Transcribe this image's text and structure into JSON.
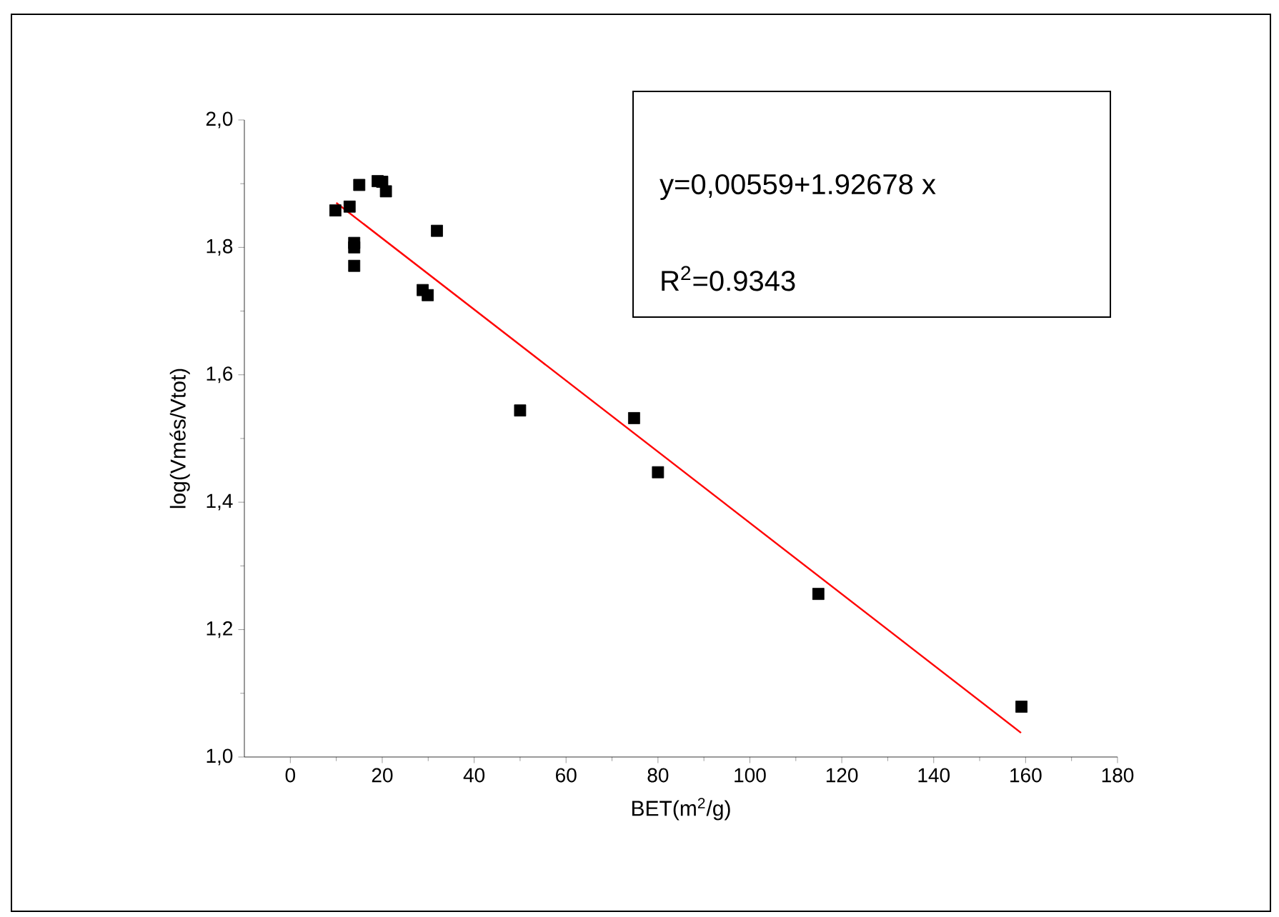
{
  "chart_data": {
    "type": "scatter",
    "xlabel": "BET(m$^{2}$/g)",
    "ylabel": "log(Vmés/Vtot)",
    "annotations": [
      "y=0,00559+1.92678 x",
      "R$^{2}$=0.9343"
    ],
    "xlim": [
      -10,
      180
    ],
    "ylim": [
      1.0,
      2.0
    ],
    "xticks": [
      0,
      20,
      40,
      60,
      80,
      100,
      120,
      140,
      160,
      180
    ],
    "yticks": [
      {
        "value": 1.0,
        "label": "1,0"
      },
      {
        "value": 1.2,
        "label": "1,2"
      },
      {
        "value": 1.4,
        "label": "1,4"
      },
      {
        "value": 1.6,
        "label": "1,6"
      },
      {
        "value": 1.8,
        "label": "1,8"
      },
      {
        "value": 2.0,
        "label": "2,0"
      }
    ],
    "grid": false,
    "series": [
      {
        "marker": "square",
        "color": "#000000",
        "x": [
          9.8,
          12.9,
          13.9,
          13.9,
          13.9,
          15,
          19,
          20,
          20.8,
          31.9,
          28.8,
          29.9,
          50.0,
          74.8,
          80.0,
          114.9,
          159.1
        ],
        "values": [
          1.858,
          1.864,
          1.807,
          1.8,
          1.771,
          1.898,
          1.904,
          1.903,
          1.888,
          1.826,
          1.733,
          1.725,
          1.544,
          1.532,
          1.447,
          1.256,
          1.079
        ]
      },
      {
        "type": "line",
        "marker": "none",
        "color": "#ff0000",
        "x": [
          10,
          159
        ],
        "values": [
          1.87,
          1.038
        ]
      }
    ]
  }
}
